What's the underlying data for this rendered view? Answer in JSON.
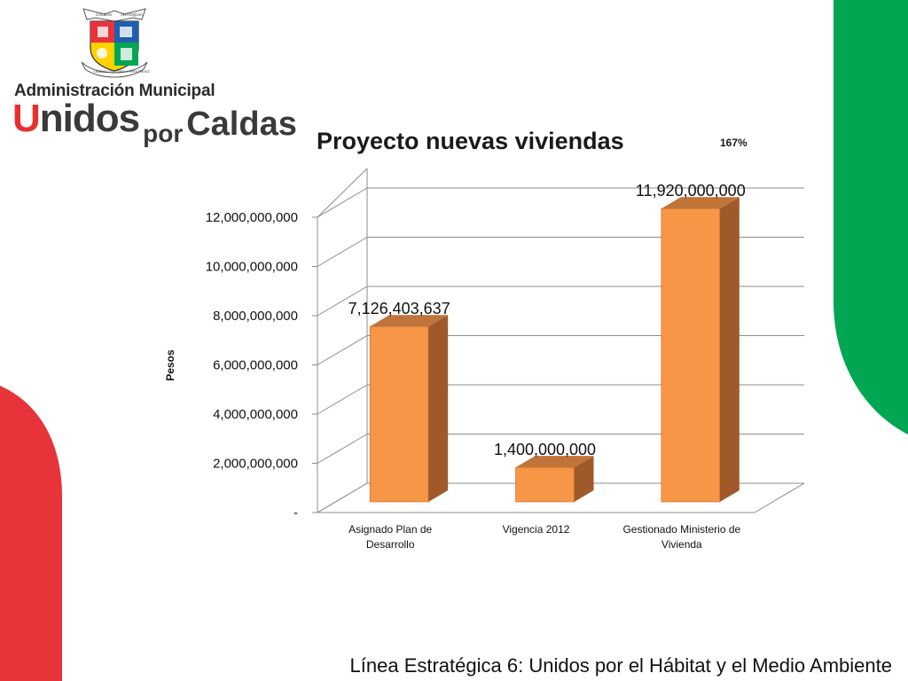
{
  "logo": {
    "admin_text": "Administración Municipal",
    "wordmark_u": "U",
    "wordmark_nidos": "nidos",
    "wordmark_por": "por",
    "wordmark_caldas": "Caldas",
    "crest_banner_left": "CALDAS",
    "crest_banner_right": "ANTIOQUIA",
    "crest_ribbon": "UNIDAD CULTURA Y PROGRESO"
  },
  "colors": {
    "bar_front": "#f79646",
    "bar_side": "#a05a2a",
    "bar_top": "#c0743a",
    "grid": "#8c8c8c",
    "deco_green": "#00a651",
    "deco_red": "#e8333a"
  },
  "chart_data": {
    "type": "bar",
    "style": "3d-column",
    "title": "Proyecto nuevas viviendas",
    "annotation": "167%",
    "ylabel": "Pesos",
    "xlabel": "",
    "ylim": [
      0,
      12000000000
    ],
    "yticks": [
      {
        "value": 0,
        "label": "-"
      },
      {
        "value": 2000000000,
        "label": "2,000,000,000"
      },
      {
        "value": 4000000000,
        "label": "4,000,000,000"
      },
      {
        "value": 6000000000,
        "label": "6,000,000,000"
      },
      {
        "value": 8000000000,
        "label": "8,000,000,000"
      },
      {
        "value": 10000000000,
        "label": "10,000,000,000"
      },
      {
        "value": 12000000000,
        "label": "12,000,000,000"
      }
    ],
    "grid": true,
    "legend": "none",
    "categories": [
      [
        "Asignado Plan de",
        "Desarrollo"
      ],
      [
        "Vigencia 2012"
      ],
      [
        "Gestionado Ministerio de",
        "Vivienda"
      ]
    ],
    "values": [
      7126403637,
      1400000000,
      11920000000
    ],
    "data_labels": [
      "7,126,403,637",
      "1,400,000,000",
      "11,920,000,000"
    ]
  },
  "footer": "Línea Estratégica 6: Unidos por el Hábitat y el Medio Ambiente"
}
